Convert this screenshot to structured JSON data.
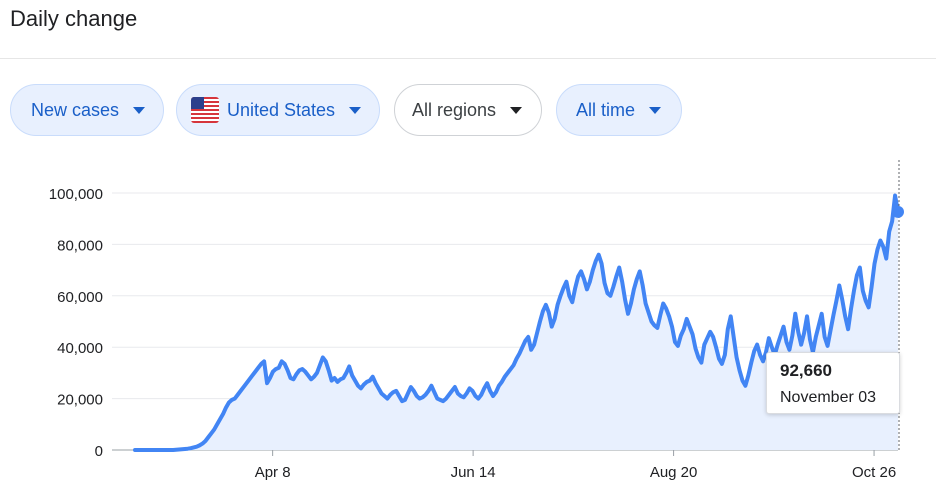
{
  "header": {
    "title": "Daily change"
  },
  "filters": {
    "metric": {
      "label": "New cases",
      "icon": "caret-down-icon"
    },
    "country": {
      "label": "United States",
      "icon": "us-flag-icon"
    },
    "region": {
      "label": "All regions",
      "icon": "caret-down-icon"
    },
    "period": {
      "label": "All time",
      "icon": "caret-down-icon"
    }
  },
  "colors": {
    "line": "#4285f4",
    "area": "#e8f0fe",
    "chip_blue_bg": "#e8f0fe",
    "chip_blue_text": "#1a5fc8"
  },
  "tooltip": {
    "value": "92,660",
    "date": "November 03"
  },
  "chart_data": {
    "type": "line",
    "title": "",
    "xlabel": "",
    "ylabel": "",
    "ylim": [
      0,
      100000
    ],
    "yticks": [
      0,
      20000,
      40000,
      60000,
      80000,
      100000
    ],
    "ytick_labels": [
      "0",
      "20,000",
      "40,000",
      "60,000",
      "80,000",
      "100,000"
    ],
    "xticks": [
      {
        "date": "2020-04-08",
        "label": "Apr 8"
      },
      {
        "date": "2020-06-14",
        "label": "Jun 14"
      },
      {
        "date": "2020-08-20",
        "label": "Aug 20"
      },
      {
        "date": "2020-10-26",
        "label": "Oct 26"
      }
    ],
    "x_start": "2020-02-22",
    "x_end": "2020-11-03",
    "grid": true,
    "area_fill": true,
    "series": [
      {
        "values": [
          0,
          0,
          0,
          0,
          0,
          0,
          0,
          0,
          0,
          0,
          0,
          0,
          0,
          0,
          100,
          200,
          300,
          400,
          500,
          700,
          1000,
          1300,
          1800,
          2500,
          3500,
          5000,
          6500,
          8000,
          10000,
          12000,
          14000,
          16500,
          18500,
          19500,
          20000,
          21500,
          23000,
          24500,
          26000,
          27500,
          29000,
          30500,
          32000,
          33500,
          34500,
          26000,
          28000,
          30500,
          31500,
          32000,
          34500,
          33500,
          31000,
          28000,
          27500,
          29500,
          31000,
          31500,
          30500,
          29000,
          27500,
          28500,
          30000,
          33000,
          36000,
          34500,
          31000,
          27000,
          28000,
          26500,
          27500,
          28000,
          30000,
          32500,
          29000,
          27000,
          25000,
          24000,
          25500,
          26500,
          27000,
          28500,
          26000,
          24000,
          22000,
          21000,
          20000,
          21500,
          22500,
          23000,
          21000,
          19000,
          19500,
          22000,
          24500,
          23000,
          21000,
          20000,
          20500,
          21500,
          23000,
          25000,
          22500,
          20000,
          19500,
          19000,
          20000,
          21500,
          23000,
          24500,
          22000,
          21000,
          20500,
          22000,
          24000,
          23000,
          21000,
          20000,
          21500,
          24000,
          26000,
          23000,
          21000,
          22500,
          25000,
          26500,
          28500,
          30000,
          31500,
          33000,
          35500,
          37500,
          40000,
          42500,
          44000,
          39000,
          41000,
          45500,
          50000,
          54000,
          56500,
          53500,
          48000,
          51000,
          56500,
          60000,
          63000,
          65500,
          60000,
          57500,
          63000,
          67500,
          69500,
          66500,
          62500,
          65500,
          70000,
          73500,
          76000,
          72500,
          65000,
          61000,
          60000,
          63500,
          67500,
          71000,
          65500,
          58500,
          53000,
          57000,
          62500,
          66500,
          69500,
          64000,
          57000,
          53500,
          50000,
          48500,
          47500,
          52500,
          57000,
          55000,
          52000,
          48000,
          42000,
          40500,
          44500,
          47000,
          51000,
          48000,
          45000,
          39500,
          36000,
          34000,
          41000,
          43500,
          46000,
          44000,
          40000,
          35500,
          33500,
          37000,
          47000,
          52000,
          44000,
          36000,
          31000,
          27000,
          25000,
          29000,
          34000,
          38500,
          41000,
          37000,
          34500,
          38000,
          43500,
          40000,
          37000,
          41000,
          44500,
          48000,
          42000,
          39000,
          44500,
          53000,
          46000,
          41000,
          45500,
          52000,
          43000,
          38000,
          44000,
          48500,
          53000,
          44000,
          40500,
          46500,
          52500,
          58000,
          64000,
          58500,
          52000,
          47000,
          55000,
          62000,
          68000,
          71000,
          62000,
          58000,
          55500,
          63500,
          72500,
          78000,
          81500,
          79000,
          74500,
          85000,
          89000,
          99000,
          92660
        ]
      }
    ]
  }
}
